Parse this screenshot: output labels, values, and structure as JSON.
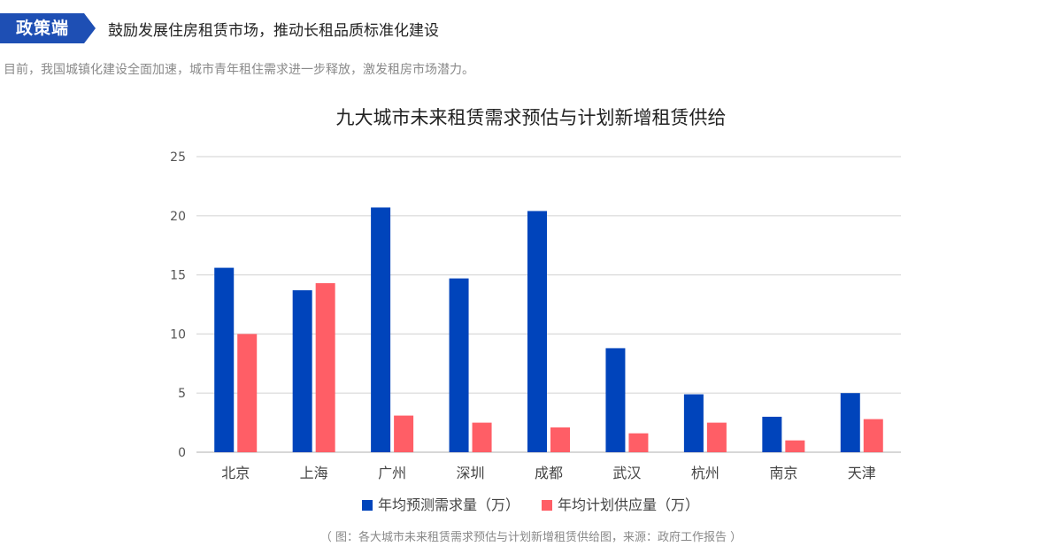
{
  "header": {
    "tag": "政策端",
    "headline": "鼓励发展住房租赁市场，推动长租品质标准化建设"
  },
  "intro": "目前，我国城镇化建设全面加速，城市青年租住需求进一步释放，激发租房市场潜力。",
  "chart_data": {
    "type": "bar",
    "title": "九大城市未来租赁需求预估与计划新增租赁供给",
    "categories": [
      "北京",
      "上海",
      "广州",
      "深圳",
      "成都",
      "武汉",
      "杭州",
      "南京",
      "天津"
    ],
    "series": [
      {
        "name": "年均预测需求量（万）",
        "color": "#0044bb",
        "values": [
          15.6,
          13.7,
          20.7,
          14.7,
          20.4,
          8.8,
          4.9,
          3.0,
          5.0
        ]
      },
      {
        "name": "年均计划供应量（万）",
        "color": "#ff5e66",
        "values": [
          10.0,
          14.3,
          3.1,
          2.5,
          2.1,
          1.6,
          2.5,
          1.0,
          2.8
        ]
      }
    ],
    "yticks": [
      0,
      5,
      10,
      15,
      20,
      25
    ],
    "ylim": [
      0,
      25
    ],
    "grid": true,
    "legend_position": "bottom"
  },
  "caption": "（ 图：各大城市未来租赁需求预估与计划新增租赁供给图，来源：政府工作报告 ）"
}
